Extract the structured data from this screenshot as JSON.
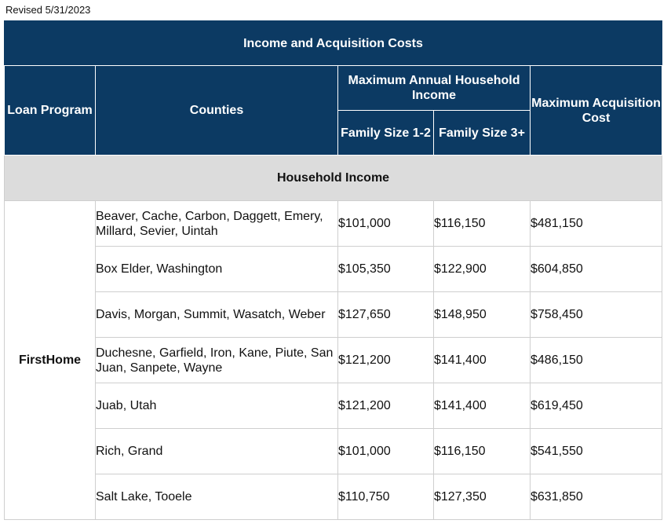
{
  "revised": "Revised 5/31/2023",
  "table": {
    "title": "Income and Acquisition Costs",
    "headers": {
      "loan_program": "Loan Program",
      "counties": "Counties",
      "max_income": "Maximum Annual Household Income",
      "family_1_2": "Family Size 1-2",
      "family_3_plus": "Family Size 3+",
      "max_acquisition": "Maximum Acquisition Cost"
    },
    "section": "Household Income",
    "program": "FirstHome",
    "rows": [
      {
        "counties": "Beaver, Cache, Carbon, Daggett, Emery, Millard, Sevier, Uintah",
        "income_1_2": "$101,000",
        "income_3_plus": "$116,150",
        "acquisition": "$481,150"
      },
      {
        "counties": "Box Elder, Washington",
        "income_1_2": "$105,350",
        "income_3_plus": "$122,900",
        "acquisition": "$604,850"
      },
      {
        "counties": "Davis, Morgan, Summit, Wasatch, Weber",
        "income_1_2": "$127,650",
        "income_3_plus": "$148,950",
        "acquisition": "$758,450"
      },
      {
        "counties": "Duchesne, Garfield, Iron, Kane, Piute, San Juan, Sanpete, Wayne",
        "income_1_2": "$121,200",
        "income_3_plus": "$141,400",
        "acquisition": "$486,150"
      },
      {
        "counties": "Juab, Utah",
        "income_1_2": "$121,200",
        "income_3_plus": "$141,400",
        "acquisition": "$619,450"
      },
      {
        "counties": "Rich, Grand",
        "income_1_2": "$101,000",
        "income_3_plus": "$116,150",
        "acquisition": "$541,550"
      },
      {
        "counties": "Salt Lake, Tooele",
        "income_1_2": "$110,750",
        "income_3_plus": "$127,350",
        "acquisition": "$631,850"
      }
    ]
  }
}
